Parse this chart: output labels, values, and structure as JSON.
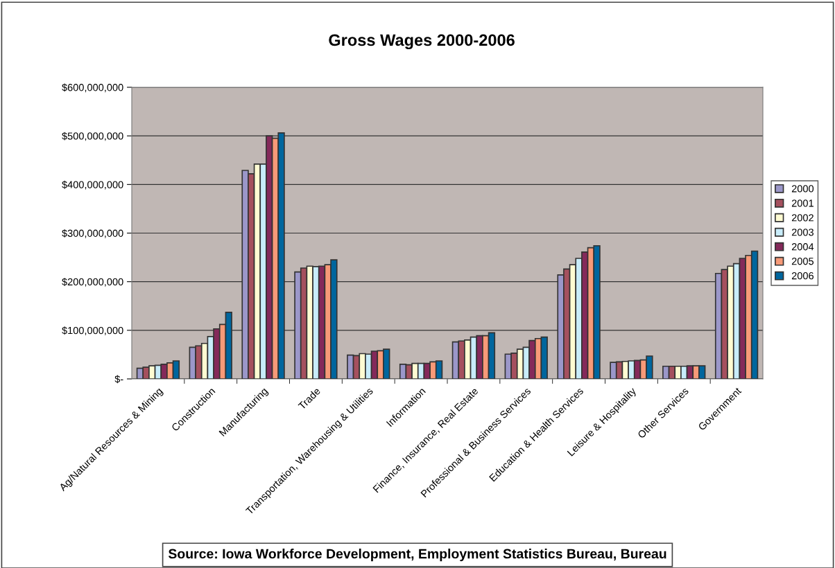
{
  "chart_data": {
    "type": "bar",
    "title": "Gross Wages 2000-2006",
    "categories": [
      "Ag/Natural Resources & Mining",
      "Construction",
      "Manufacturing",
      "Trade",
      "Transportation, Warehousing & Utilities",
      "Information",
      "Finance, Insurance, Real Estate",
      "Professional & Business Services",
      "Education & Health Services",
      "Leisure & Hospitality",
      "Other Services",
      "Government"
    ],
    "series": [
      {
        "name": "2000",
        "color": "#9b97c9",
        "values": [
          22000000,
          65000000,
          429000000,
          220000000,
          49000000,
          30000000,
          76000000,
          51000000,
          214000000,
          34000000,
          26000000,
          217000000
        ]
      },
      {
        "name": "2001",
        "color": "#a5505e",
        "values": [
          24000000,
          68000000,
          422000000,
          228000000,
          48000000,
          29000000,
          78000000,
          53000000,
          226000000,
          35000000,
          26000000,
          225000000
        ]
      },
      {
        "name": "2002",
        "color": "#fffbd2",
        "values": [
          27000000,
          73000000,
          442000000,
          232000000,
          52000000,
          32000000,
          80000000,
          61000000,
          235000000,
          36000000,
          26000000,
          232000000
        ]
      },
      {
        "name": "2003",
        "color": "#c8ecfa",
        "values": [
          28000000,
          87000000,
          442000000,
          231000000,
          51000000,
          32000000,
          86000000,
          65000000,
          248000000,
          37000000,
          26000000,
          237000000
        ]
      },
      {
        "name": "2004",
        "color": "#84295a",
        "values": [
          30000000,
          103000000,
          500000000,
          232000000,
          57000000,
          32000000,
          89000000,
          79000000,
          261000000,
          38000000,
          27000000,
          248000000
        ]
      },
      {
        "name": "2005",
        "color": "#f79a78",
        "values": [
          33000000,
          112000000,
          495000000,
          235000000,
          58000000,
          35000000,
          89000000,
          83000000,
          270000000,
          39000000,
          27000000,
          254000000
        ]
      },
      {
        "name": "2006",
        "color": "#00669e",
        "values": [
          37000000,
          137000000,
          506000000,
          245000000,
          61000000,
          37000000,
          95000000,
          86000000,
          274000000,
          47000000,
          27000000,
          263000000
        ]
      }
    ],
    "ylim": [
      0,
      600000000
    ],
    "yticks": [
      {
        "value": 0,
        "label": "$-"
      },
      {
        "value": 100000000,
        "label": "$100,000,000"
      },
      {
        "value": 200000000,
        "label": "$200,000,000"
      },
      {
        "value": 300000000,
        "label": "$300,000,000"
      },
      {
        "value": 400000000,
        "label": "$400,000,000"
      },
      {
        "value": 500000000,
        "label": "$500,000,000"
      },
      {
        "value": 600000000,
        "label": "$600,000,000"
      }
    ],
    "grid": "y",
    "legend": "right",
    "annotations": [
      "Source: Iowa Workforce Development, Employment Statistics Bureau, Bureau"
    ]
  }
}
